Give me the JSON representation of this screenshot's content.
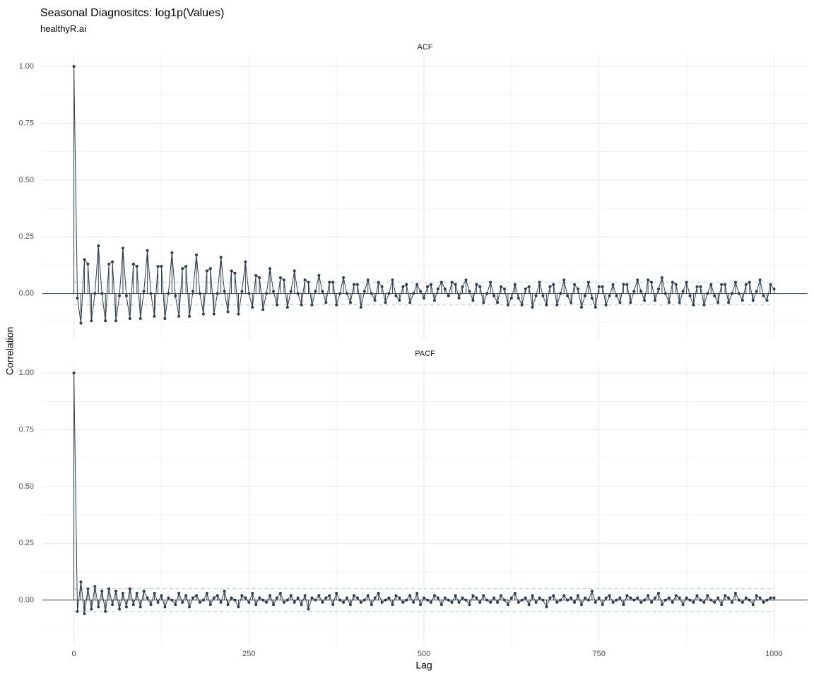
{
  "chart_data": {
    "type": "facet",
    "title": "Seasonal Diagnositcs: log1p(Values)",
    "subtitle": "healthyR.ai",
    "xlabel": "Lag",
    "ylabel": "Correlation",
    "color": "#2c3e50",
    "band_color": "#a6c8e0",
    "xlim": [
      -45,
      1048
    ],
    "xticks": [
      0,
      250,
      500,
      750,
      1000
    ],
    "ylim": [
      -0.2,
      1.05
    ],
    "yticks": [
      {
        "value": 0,
        "label": "0.00"
      },
      {
        "value": 0.25,
        "label": "0.25"
      },
      {
        "value": 0.5,
        "label": "0.50"
      },
      {
        "value": 0.75,
        "label": "0.75"
      },
      {
        "value": 1,
        "label": "1.00"
      }
    ],
    "grid": true,
    "x": [
      0,
      5,
      10,
      15,
      20,
      25,
      30,
      35,
      40,
      45,
      50,
      55,
      60,
      65,
      70,
      75,
      80,
      85,
      90,
      95,
      100,
      105,
      110,
      115,
      120,
      125,
      130,
      135,
      140,
      145,
      150,
      155,
      160,
      165,
      170,
      175,
      180,
      185,
      190,
      195,
      200,
      205,
      210,
      215,
      220,
      225,
      230,
      235,
      240,
      245,
      250,
      255,
      260,
      265,
      270,
      275,
      280,
      285,
      290,
      295,
      300,
      305,
      310,
      315,
      320,
      325,
      330,
      335,
      340,
      345,
      350,
      355,
      360,
      365,
      370,
      375,
      380,
      385,
      390,
      395,
      400,
      405,
      410,
      415,
      420,
      425,
      430,
      435,
      440,
      445,
      450,
      455,
      460,
      465,
      470,
      475,
      480,
      485,
      490,
      495,
      500,
      505,
      510,
      515,
      520,
      525,
      530,
      535,
      540,
      545,
      550,
      555,
      560,
      565,
      570,
      575,
      580,
      585,
      590,
      595,
      600,
      605,
      610,
      615,
      620,
      625,
      630,
      635,
      640,
      645,
      650,
      655,
      660,
      665,
      670,
      675,
      680,
      685,
      690,
      695,
      700,
      705,
      710,
      715,
      720,
      725,
      730,
      735,
      740,
      745,
      750,
      755,
      760,
      765,
      770,
      775,
      780,
      785,
      790,
      795,
      800,
      805,
      810,
      815,
      820,
      825,
      830,
      835,
      840,
      845,
      850,
      855,
      860,
      865,
      870,
      875,
      880,
      885,
      890,
      895,
      900,
      905,
      910,
      915,
      920,
      925,
      930,
      935,
      940,
      945,
      950,
      955,
      960,
      965,
      970,
      975,
      980,
      985,
      990,
      995,
      1000
    ],
    "panels": [
      {
        "name": "ACF",
        "type": "line",
        "band": [
          -0.05,
          0.05
        ],
        "values": [
          1.0,
          -0.02,
          -0.13,
          0.15,
          0.13,
          -0.12,
          0.0,
          0.21,
          0.0,
          -0.12,
          0.13,
          0.14,
          -0.12,
          -0.01,
          0.2,
          -0.01,
          -0.11,
          0.13,
          0.12,
          -0.11,
          0.01,
          0.19,
          0.0,
          -0.1,
          0.12,
          0.12,
          -0.11,
          0.0,
          0.18,
          -0.01,
          -0.1,
          0.11,
          0.12,
          -0.1,
          0.01,
          0.17,
          0.0,
          -0.09,
          0.1,
          0.11,
          -0.09,
          0.0,
          0.16,
          0.01,
          -0.08,
          0.1,
          0.09,
          -0.09,
          0.01,
          0.14,
          0.0,
          -0.06,
          0.08,
          0.07,
          -0.07,
          0.0,
          0.11,
          0.01,
          -0.05,
          0.07,
          0.06,
          -0.06,
          0.01,
          0.1,
          0.0,
          -0.05,
          0.06,
          0.05,
          -0.05,
          0.01,
          0.08,
          0.01,
          -0.04,
          0.05,
          0.05,
          -0.05,
          0.0,
          0.07,
          0.0,
          -0.04,
          0.04,
          0.04,
          -0.06,
          0.01,
          0.06,
          0.0,
          -0.03,
          0.05,
          0.03,
          -0.04,
          0.0,
          0.06,
          -0.01,
          -0.03,
          0.03,
          0.04,
          -0.04,
          0.0,
          0.04,
          0.01,
          -0.02,
          0.03,
          0.04,
          -0.03,
          0.02,
          0.05,
          0.02,
          -0.01,
          0.05,
          0.04,
          -0.02,
          0.03,
          0.06,
          0.01,
          -0.03,
          0.04,
          0.03,
          -0.04,
          0.0,
          0.05,
          -0.01,
          -0.04,
          0.03,
          0.02,
          -0.05,
          -0.02,
          0.04,
          -0.02,
          -0.05,
          0.02,
          0.03,
          -0.06,
          -0.01,
          0.05,
          -0.01,
          -0.05,
          0.03,
          0.04,
          -0.05,
          0.0,
          0.06,
          -0.01,
          -0.04,
          0.04,
          0.02,
          -0.06,
          -0.01,
          0.05,
          -0.02,
          -0.06,
          0.03,
          0.03,
          -0.05,
          -0.01,
          0.04,
          -0.01,
          -0.04,
          0.04,
          0.04,
          -0.04,
          0.01,
          0.06,
          0.01,
          -0.03,
          0.06,
          0.05,
          -0.03,
          0.02,
          0.07,
          0.0,
          -0.04,
          0.05,
          0.04,
          -0.04,
          0.01,
          0.05,
          -0.01,
          -0.05,
          0.03,
          0.03,
          -0.05,
          0.0,
          0.04,
          -0.01,
          -0.04,
          0.04,
          0.04,
          -0.04,
          0.0,
          0.05,
          0.0,
          -0.03,
          0.04,
          0.05,
          -0.03,
          0.01,
          0.06,
          -0.01,
          -0.03,
          0.04,
          0.02
        ]
      },
      {
        "name": "PACF",
        "type": "line",
        "band": [
          -0.05,
          0.05
        ],
        "values": [
          1.0,
          -0.05,
          0.08,
          -0.06,
          0.05,
          -0.04,
          0.06,
          -0.03,
          0.04,
          -0.05,
          0.05,
          -0.02,
          0.04,
          -0.04,
          0.03,
          -0.03,
          0.05,
          -0.02,
          0.03,
          -0.03,
          0.04,
          0.01,
          -0.02,
          0.03,
          -0.01,
          0.02,
          -0.03,
          0.01,
          0.0,
          -0.02,
          0.03,
          -0.01,
          0.02,
          -0.03,
          0.01,
          0.02,
          -0.01,
          0.0,
          0.03,
          -0.02,
          0.01,
          0.02,
          -0.01,
          0.04,
          -0.02,
          0.01,
          0.0,
          -0.03,
          0.02,
          0.01,
          -0.01,
          0.03,
          -0.02,
          0.01,
          0.0,
          -0.01,
          0.02,
          -0.02,
          0.01,
          0.03,
          -0.01,
          0.0,
          0.02,
          -0.01,
          0.01,
          -0.02,
          0.02,
          -0.04,
          0.01,
          0.0,
          0.02,
          -0.01,
          0.01,
          0.02,
          -0.02,
          0.03,
          0.0,
          -0.01,
          0.01,
          -0.02,
          0.02,
          0.01,
          -0.01,
          0.0,
          0.02,
          -0.02,
          0.01,
          0.03,
          -0.01,
          0.0,
          0.01,
          -0.02,
          0.02,
          0.01,
          -0.01,
          0.0,
          0.02,
          -0.01,
          0.03,
          -0.02,
          0.01,
          0.0,
          -0.01,
          0.02,
          0.01,
          -0.02,
          0.01,
          0.0,
          -0.01,
          0.02,
          -0.01,
          0.01,
          0.0,
          -0.02,
          0.02,
          0.01,
          -0.01,
          0.02,
          0.0,
          -0.01,
          0.01,
          -0.01,
          0.02,
          0.0,
          -0.02,
          0.01,
          0.03,
          -0.01,
          0.0,
          0.01,
          -0.02,
          0.02,
          -0.01,
          0.01,
          0.0,
          -0.03,
          0.01,
          0.02,
          -0.01,
          0.0,
          0.02,
          0.0,
          0.01,
          -0.01,
          0.02,
          -0.02,
          0.01,
          0.0,
          0.04,
          -0.01,
          0.01,
          -0.02,
          0.01,
          0.02,
          -0.01,
          0.0,
          0.01,
          -0.02,
          0.02,
          0.01,
          0.0,
          0.01,
          -0.01,
          0.0,
          0.02,
          -0.01,
          0.01,
          0.03,
          -0.02,
          0.0,
          0.01,
          -0.01,
          0.02,
          0.01,
          -0.02,
          0.01,
          0.0,
          -0.01,
          0.02,
          0.0,
          -0.01,
          0.02,
          0.0,
          -0.01,
          0.01,
          -0.02,
          0.02,
          0.01,
          -0.01,
          0.03,
          0.0,
          -0.01,
          0.01,
          0.0,
          -0.02,
          0.02,
          0.01,
          -0.01,
          0.0,
          0.01,
          0.01
        ]
      }
    ]
  }
}
